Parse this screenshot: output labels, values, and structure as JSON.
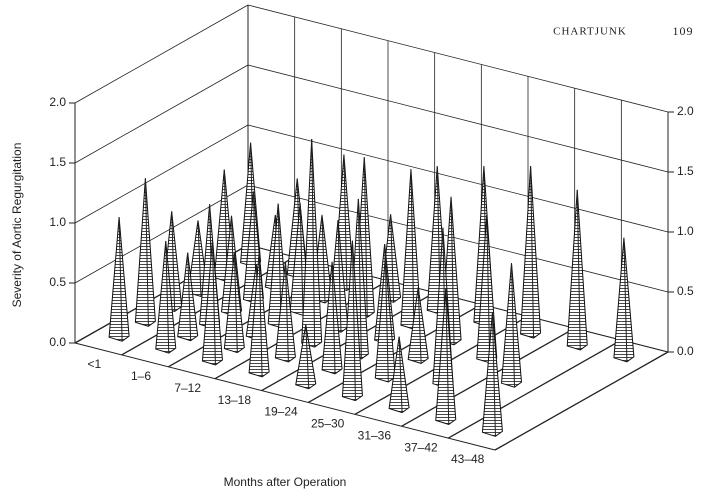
{
  "chart_data": {
    "type": "pyramid3d",
    "page_header": "CHARTJUNK",
    "page_number": "109",
    "y_label": "Severity of Aortic Regurgitation",
    "x_label": "Months after Operation",
    "categories": [
      "<1",
      "1–6",
      "7–12",
      "13–18",
      "19–24",
      "25–30",
      "31–36",
      "37–42",
      "43–48"
    ],
    "values": [
      [
        1.0,
        1.2,
        0.8,
        0.6,
        0.9,
        1.0
      ],
      [
        0.9,
        0.7,
        1.0,
        0.8,
        0.9,
        0.6,
        0.8
      ],
      [
        1.0,
        0.8,
        0.6,
        1.0,
        0.9,
        0.7,
        1.1
      ],
      [
        1.0,
        0.8,
        1.7,
        0.9,
        1.3,
        0.7
      ],
      [
        0.5,
        0.9,
        1.3,
        0.8,
        1.3,
        1.2
      ],
      [
        1.3,
        1.0,
        0.6,
        1.2,
        1.3
      ],
      [
        0.6,
        1.3,
        1.2,
        1.4
      ],
      [
        1.1,
        1.0,
        1.3
      ],
      [
        1.0,
        1.0
      ]
    ],
    "ylim": [
      0,
      2
    ],
    "yticks": [
      {
        "value": 0,
        "label": "0.0"
      },
      0.5,
      {
        "value": 1,
        "label": "1.0"
      },
      1.5,
      {
        "value": 2,
        "label": "2.0"
      }
    ],
    "grid": true,
    "color": "#ffffff"
  }
}
